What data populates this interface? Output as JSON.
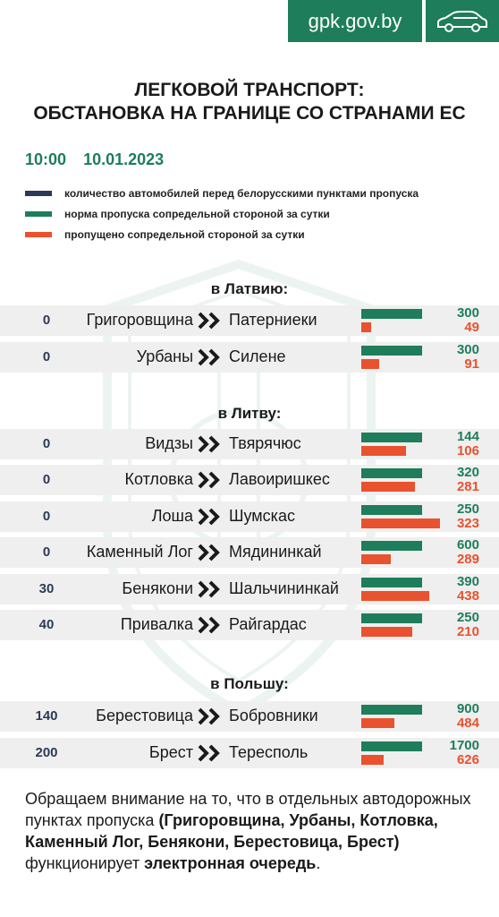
{
  "header": {
    "site": "gpk.gov.by",
    "icon": "car-icon"
  },
  "title": {
    "line1": "ЛЕГКОВОЙ ТРАНСПОРТ:",
    "line2": "ОБСТАНОВКА НА ГРАНИЦЕ СО СТРАНАМИ ЕС"
  },
  "time": "10:00",
  "date": "10.01.2023",
  "colors": {
    "queue": "#2b3a55",
    "norm": "#1e7d5a",
    "passed": "#e8522e"
  },
  "legend": [
    "количество автомобилей перед белорусскими пунктами пропуска",
    "норма пропуска сопредельной стороной за сутки",
    "пропущено сопредельной стороной за сутки"
  ],
  "sections": {
    "latvia": "в Латвию:",
    "lithuania": "в Литву:",
    "poland": "в Польшу:"
  },
  "rows": [
    {
      "queue": "0",
      "from": "Григоровщина",
      "to": "Патерниеки",
      "norm": "300",
      "passed": "49"
    },
    {
      "queue": "0",
      "from": "Урбаны",
      "to": "Силене",
      "norm": "300",
      "passed": "91"
    },
    {
      "queue": "0",
      "from": "Видзы",
      "to": "Твярячюс",
      "norm": "144",
      "passed": "106"
    },
    {
      "queue": "0",
      "from": "Котловка",
      "to": "Лавоиришкес",
      "norm": "320",
      "passed": "281"
    },
    {
      "queue": "0",
      "from": "Лоша",
      "to": "Шумскас",
      "norm": "250",
      "passed": "323"
    },
    {
      "queue": "0",
      "from": "Каменный Лог",
      "to": "Мядининкай",
      "norm": "600",
      "passed": "289"
    },
    {
      "queue": "30",
      "from": "Бенякони",
      "to": "Шальчининкай",
      "norm": "390",
      "passed": "438"
    },
    {
      "queue": "40",
      "from": "Привалка",
      "to": "Райгардас",
      "norm": "250",
      "passed": "210"
    },
    {
      "queue": "140",
      "from": "Берестовица",
      "to": "Бобровники",
      "norm": "900",
      "passed": "484"
    },
    {
      "queue": "200",
      "from": "Брест",
      "to": "Тересполь",
      "norm": "1700",
      "passed": "626"
    }
  ],
  "bar_fractions": [
    {
      "norm": 1.0,
      "passed": 0.16
    },
    {
      "norm": 1.0,
      "passed": 0.3
    },
    {
      "norm": 1.0,
      "passed": 0.74
    },
    {
      "norm": 1.0,
      "passed": 0.88
    },
    {
      "norm": 1.0,
      "passed": 1.29
    },
    {
      "norm": 1.0,
      "passed": 0.48
    },
    {
      "norm": 1.0,
      "passed": 1.12
    },
    {
      "norm": 1.0,
      "passed": 0.84
    },
    {
      "norm": 1.0,
      "passed": 0.54
    },
    {
      "norm": 1.0,
      "passed": 0.37
    }
  ],
  "note": {
    "part1": "Обращаем внимание на то, что в отдельных автодорожных пунктах пропуска",
    "bold_list": "(Григоровщина, Урбаны, Котловка, Каменный Лог, Бенякони, Берестовица, Брест)",
    "part2": "функционирует",
    "bold_end": "электронная очередь",
    "end": "."
  }
}
